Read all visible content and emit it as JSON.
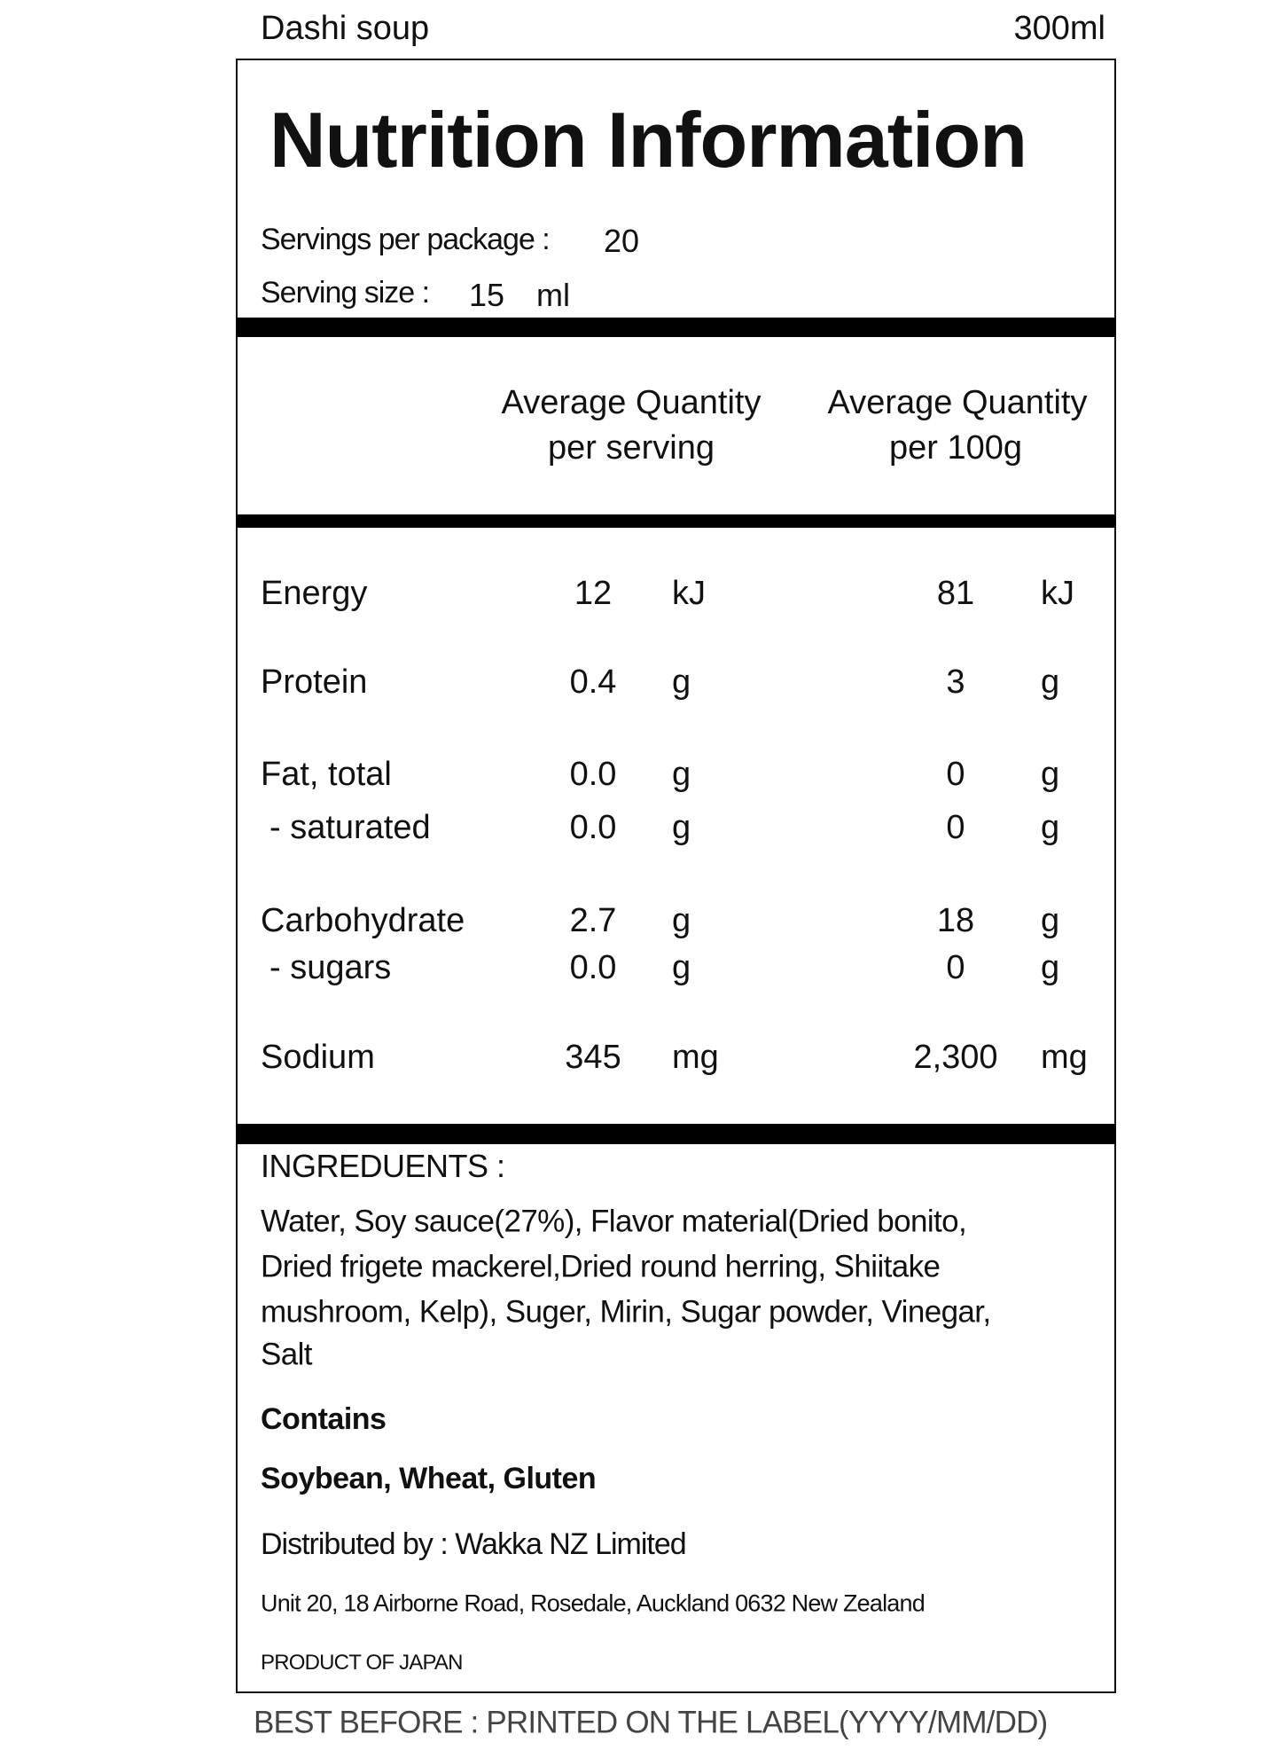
{
  "product_name": "Dashi soup",
  "volume": "300ml",
  "title": "Nutrition Information",
  "servings_per_package_label": "Servings per package :",
  "servings_per_package": "20",
  "serving_size_label": "Serving size :",
  "serving_size": "15",
  "serving_size_unit": "ml",
  "columns": [
    {
      "line1": "Average Quantity",
      "line2": "per serving"
    },
    {
      "line1": "Average Quantity",
      "line2": "per 100g"
    }
  ],
  "rows": [
    {
      "label": "Energy",
      "per_serving": "12",
      "unit1": "kJ",
      "per_100g": "81",
      "unit2": "kJ"
    },
    {
      "label": "Protein",
      "per_serving": "0.4",
      "unit1": "g",
      "per_100g": "3",
      "unit2": "g"
    },
    {
      "label": "Fat, total",
      "per_serving": "0.0",
      "unit1": "g",
      "per_100g": "0",
      "unit2": "g"
    },
    {
      "label": " - saturated",
      "per_serving": "0.0",
      "unit1": "g",
      "per_100g": "0",
      "unit2": "g"
    },
    {
      "label": "Carbohydrate",
      "per_serving": "2.7",
      "unit1": "g",
      "per_100g": "18",
      "unit2": "g"
    },
    {
      "label": " - sugars",
      "per_serving": "0.0",
      "unit1": "g",
      "per_100g": "0",
      "unit2": "g"
    },
    {
      "label": "Sodium",
      "per_serving": "345",
      "unit1": "mg",
      "per_100g": "2,300",
      "unit2": "mg"
    }
  ],
  "ingredients_label": "INGREDUENTS :",
  "ingredients_lines": [
    "Water, Soy sauce(27%), Flavor material(Dried bonito,",
    "Dried frigete mackerel,Dried round herring, Shiitake",
    "mushroom, Kelp), Suger, Mirin, Sugar powder, Vinegar,",
    "Salt"
  ],
  "contains_label": "Contains",
  "allergens": "Soybean, Wheat, Gluten",
  "distributor": "Distributed by : Wakka NZ Limited",
  "address": "Unit 20, 18 Airborne Road, Rosedale, Auckland 0632 New Zealand",
  "origin": "PRODUCT OF JAPAN",
  "best_before": "BEST BEFORE : PRINTED ON THE LABEL(YYYY/MM/DD)"
}
